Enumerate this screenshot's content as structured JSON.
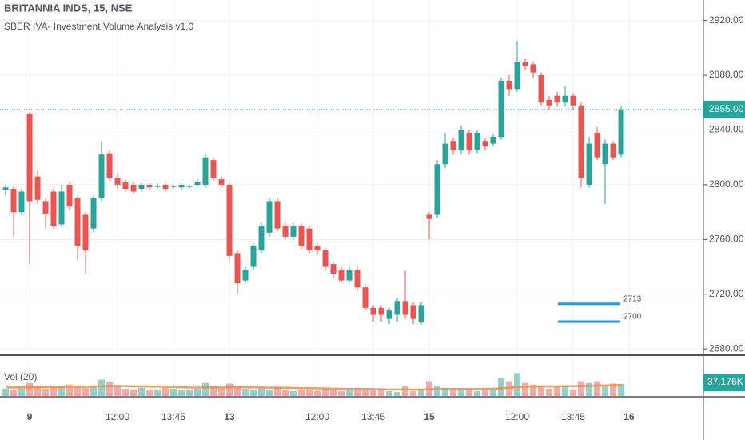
{
  "chart_data": {
    "type": "candlestick",
    "title": "BRITANNIA INDS, 15, NSE",
    "subtitle": "SBER IVA- Investment Volume Analysis v1.0",
    "categories": [
      null,
      null,
      null,
      "9",
      null,
      null,
      null,
      null,
      null,
      null,
      null,
      null,
      null,
      null,
      "12:00",
      null,
      null,
      null,
      null,
      null,
      null,
      "13:45",
      null,
      null,
      null,
      null,
      null,
      null,
      "13",
      null,
      null,
      null,
      null,
      null,
      null,
      null,
      null,
      null,
      null,
      "12:00",
      null,
      null,
      null,
      null,
      null,
      null,
      "13:45",
      null,
      null,
      null,
      null,
      null,
      null,
      "15",
      null,
      null,
      null,
      null,
      null,
      null,
      null,
      null,
      null,
      null,
      "12:00",
      null,
      null,
      null,
      null,
      null,
      null,
      "13:45",
      null,
      null,
      null,
      null,
      null,
      null,
      "16"
    ],
    "open": [
      2796,
      2797,
      2780,
      2852,
      2806,
      2788,
      2795,
      2771,
      2800,
      2790,
      2778,
      2768,
      2790,
      2823,
      2805,
      2802,
      2800,
      2797,
      2800,
      2799,
      2800,
      2799,
      2798,
      2799,
      2800,
      2800,
      2818,
      2804,
      2800,
      2750,
      2730,
      2740,
      2752,
      2765,
      2788,
      2770,
      2762,
      2770,
      2768,
      2755,
      2752,
      2742,
      2738,
      2730,
      2738,
      2725,
      2710,
      2710,
      2702,
      2705,
      2715,
      2712,
      2700,
      2778,
      2778,
      2815,
      2832,
      2825,
      2838,
      2825,
      2832,
      2830,
      2835,
      2876,
      2870,
      2890,
      2888,
      2880,
      2862,
      2865,
      2860,
      2865,
      2858,
      2800,
      2838,
      2815,
      2830,
      2822,
      null
    ],
    "high": [
      2800,
      2799,
      2797,
      2853,
      2810,
      2790,
      2797,
      2800,
      2802,
      2792,
      2780,
      2792,
      2832,
      2825,
      2808,
      2804,
      2802,
      2801,
      2801,
      2801,
      2801,
      2800,
      2801,
      2800,
      2804,
      2823,
      2820,
      2806,
      2801,
      2752,
      2740,
      2757,
      2772,
      2790,
      2790,
      2772,
      2772,
      2772,
      2770,
      2757,
      2754,
      2744,
      2740,
      2740,
      2740,
      2727,
      2712,
      2712,
      2710,
      2717,
      2737,
      2714,
      2714,
      2780,
      2818,
      2838,
      2834,
      2843,
      2840,
      2840,
      2834,
      2837,
      2878,
      2880,
      2905,
      2892,
      2890,
      2882,
      2865,
      2868,
      2872,
      2867,
      2860,
      2835,
      2842,
      2833,
      2832,
      2857,
      null
    ],
    "low": [
      2792,
      2762,
      2778,
      2742,
      2786,
      2768,
      2768,
      2769,
      2782,
      2745,
      2735,
      2765,
      2788,
      2803,
      2797,
      2795,
      2793,
      2795,
      2796,
      2797,
      2795,
      2797,
      2796,
      2797,
      2798,
      2798,
      2803,
      2798,
      2745,
      2720,
      2728,
      2738,
      2750,
      2762,
      2766,
      2760,
      2760,
      2753,
      2750,
      2749,
      2738,
      2732,
      2728,
      2728,
      2722,
      2708,
      2700,
      2700,
      2698,
      2700,
      2702,
      2698,
      2698,
      2760,
      2776,
      2812,
      2822,
      2822,
      2822,
      2823,
      2825,
      2828,
      2833,
      2865,
      2868,
      2884,
      2878,
      2858,
      2855,
      2857,
      2857,
      2855,
      2798,
      2798,
      2818,
      2786,
      2818,
      2820,
      null
    ],
    "close": [
      2798,
      2780,
      2795,
      2788,
      2789,
      2779,
      2770,
      2795,
      2784,
      2755,
      2752,
      2790,
      2822,
      2805,
      2800,
      2797,
      2795,
      2800,
      2798,
      2799,
      2797,
      2799,
      2800,
      2799,
      2802,
      2820,
      2805,
      2800,
      2748,
      2728,
      2738,
      2755,
      2770,
      2788,
      2768,
      2762,
      2770,
      2755,
      2752,
      2752,
      2740,
      2735,
      2730,
      2738,
      2725,
      2710,
      2705,
      2705,
      2708,
      2715,
      2705,
      2702,
      2712,
      2775,
      2815,
      2830,
      2825,
      2840,
      2825,
      2838,
      2828,
      2835,
      2876,
      2870,
      2890,
      2887,
      2882,
      2860,
      2858,
      2860,
      2865,
      2858,
      2805,
      2830,
      2820,
      2830,
      2820,
      2855,
      null
    ],
    "up_color": "#26a69a",
    "down_color": "#ef5350",
    "ylim": [
      2676,
      2935
    ],
    "yticks": [
      {
        "value": 2680,
        "label": "2680.00"
      },
      {
        "value": 2720,
        "label": "2720.00"
      },
      {
        "value": 2760,
        "label": "2760.00"
      },
      {
        "value": 2800,
        "label": "2800.00"
      },
      {
        "value": 2840,
        "label": "2840.00"
      },
      {
        "value": 2880,
        "label": "2880.00"
      },
      {
        "value": 2920,
        "label": "2920.00"
      }
    ],
    "grid": true,
    "last_price": {
      "value": 2855,
      "label": "2855.00"
    },
    "levels": [
      2713,
      2700
    ],
    "level_color": "#2196f3",
    "volume": {
      "name": "Vol (20)",
      "values": [
        22000,
        18000,
        25000,
        40000,
        30000,
        22000,
        28000,
        30000,
        35000,
        28000,
        25000,
        30000,
        50000,
        42000,
        30000,
        22000,
        20000,
        25000,
        18000,
        20000,
        24000,
        22000,
        18000,
        20000,
        22000,
        40000,
        30000,
        25000,
        38000,
        30000,
        22000,
        20000,
        25000,
        20000,
        28000,
        18000,
        15000,
        18000,
        20000,
        16000,
        22000,
        20000,
        15000,
        18000,
        25000,
        20000,
        18000,
        22000,
        15000,
        12000,
        30000,
        15000,
        22000,
        45000,
        30000,
        25000,
        20000,
        18000,
        22000,
        15000,
        20000,
        18000,
        55000,
        45000,
        70000,
        40000,
        35000,
        30000,
        22000,
        28000,
        30000,
        20000,
        45000,
        40000,
        45000,
        32000,
        38000,
        37176,
        null
      ],
      "last_label": "37.176K",
      "ma": [
        26000,
        26000,
        26500,
        27000,
        27500,
        27500,
        27500,
        28000,
        28500,
        28500,
        28500,
        29000,
        30000,
        30500,
        30500,
        30000,
        29500,
        29500,
        29000,
        28500,
        28000,
        27500,
        26500,
        26000,
        25500,
        26000,
        26000,
        26000,
        26500,
        26500,
        26500,
        26000,
        26000,
        25500,
        25500,
        25000,
        24500,
        24000,
        24000,
        23500,
        23000,
        22500,
        22000,
        21500,
        21500,
        21500,
        21000,
        20500,
        20000,
        20000,
        20000,
        19500,
        19500,
        20500,
        21000,
        21000,
        21500,
        21500,
        21500,
        21500,
        22000,
        22000,
        23500,
        25000,
        27500,
        28500,
        29000,
        29500,
        29500,
        29500,
        30000,
        30000,
        30500,
        31000,
        32000,
        32500,
        33000,
        33500,
        null
      ],
      "ma_color": "#f7893b",
      "ylim": [
        0,
        120000
      ]
    }
  }
}
